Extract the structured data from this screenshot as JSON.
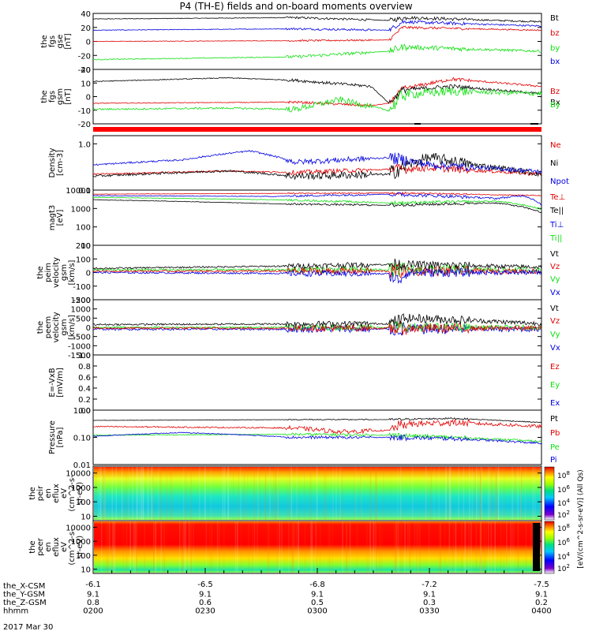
{
  "title": "P4 (TH-E) fields and on-board moments overview",
  "colors": {
    "black": "#000000",
    "red": "#e00000",
    "green": "#10e010",
    "blue": "#0000e0",
    "status_red": "#ff0000"
  },
  "x_axis": {
    "tick_labels": [
      "-6.1",
      "-6.5",
      "-6.8",
      "-7.2",
      "-7.5"
    ],
    "rows": [
      {
        "label": "the_X-CSM",
        "values": [
          "-6.1",
          "-6.5",
          "-6.8",
          "-7.2",
          "-7.5"
        ]
      },
      {
        "label": "the_Y-GSM",
        "values": [
          "9.1",
          "9.1",
          "9.1",
          "9.1",
          "9.1"
        ]
      },
      {
        "label": "the_Z-GSM",
        "values": [
          "0.8",
          "0.6",
          "0.5",
          "0.3",
          "0.2"
        ]
      },
      {
        "label": "hhmm",
        "values": [
          "0200",
          "0230",
          "0300",
          "0330",
          "0400"
        ]
      }
    ],
    "date": "2017 Mar 30"
  },
  "colorbar": {
    "label": "[eV/(cm^2-s-sr-eV)] (All Qs)",
    "tick_labels": [
      "10^8",
      "10^6",
      "10^4",
      "10^2",
      "10^8",
      "10^6",
      "10^4",
      "10^2"
    ]
  },
  "chart_data": [
    {
      "id": "fgs_gse",
      "type": "line",
      "ylabel": [
        "the",
        "fgs",
        "gse",
        "[nT]"
      ],
      "ylim": [
        -40,
        40
      ],
      "ticks": [
        "40",
        "20",
        "0",
        "-20",
        "-40"
      ],
      "legend": [
        {
          "name": "Bt",
          "color": "black"
        },
        {
          "name": "bz",
          "color": "red"
        },
        {
          "name": "by",
          "color": "green"
        },
        {
          "name": "bx",
          "color": "blue"
        }
      ]
    },
    {
      "id": "fgs_gsm",
      "type": "line",
      "ylabel": [
        "the",
        "fgs",
        "gsm",
        "[nT]"
      ],
      "ylim": [
        -25,
        20
      ],
      "ticks": [
        "20",
        "10",
        "0",
        "-10",
        "-20"
      ],
      "legend": [
        {
          "name": "Bz",
          "color": "red"
        },
        {
          "name": "Bx",
          "color": "black"
        },
        {
          "name": "By",
          "color": "green"
        }
      ]
    },
    {
      "id": "density",
      "type": "line",
      "ylabel": [
        "Density",
        "[cm-3]"
      ],
      "ylim": [
        0.1,
        1.5
      ],
      "log": true,
      "ticks": [
        "1.0",
        "0.1"
      ],
      "legend": [
        {
          "name": "Ne",
          "color": "red"
        },
        {
          "name": "Ni",
          "color": "black"
        },
        {
          "name": "Npot",
          "color": "blue"
        }
      ]
    },
    {
      "id": "temperature",
      "type": "line",
      "ylabel": [
        "magt3",
        "[eV]"
      ],
      "ylim": [
        10,
        10000
      ],
      "log": true,
      "ticks": [
        "10000",
        "1000",
        "100",
        "10"
      ],
      "legend": [
        {
          "name": "Te⊥",
          "color": "red"
        },
        {
          "name": "Te||",
          "color": "black"
        },
        {
          "name": "Ti⊥",
          "color": "blue"
        },
        {
          "name": "Ti||",
          "color": "green"
        }
      ]
    },
    {
      "id": "peim_velocity",
      "type": "line",
      "ylabel": [
        "the",
        "peim",
        "velocity",
        "gsm",
        "[km/s]"
      ],
      "ylim": [
        -200,
        200
      ],
      "ticks": [
        "200",
        "100",
        "0",
        "-100",
        "-200"
      ],
      "legend": [
        {
          "name": "Vt",
          "color": "black"
        },
        {
          "name": "Vz",
          "color": "red"
        },
        {
          "name": "Vy",
          "color": "green"
        },
        {
          "name": "Vx",
          "color": "blue"
        }
      ]
    },
    {
      "id": "peem_velocity",
      "type": "line",
      "ylabel": [
        "the",
        "peem",
        "velocity",
        "gsm",
        "[km/s]"
      ],
      "ylim": [
        -1500,
        1500
      ],
      "ticks": [
        "1500",
        "1000",
        "500",
        "0",
        "-500",
        "-1000",
        "-1500"
      ],
      "legend": [
        {
          "name": "Vt",
          "color": "black"
        },
        {
          "name": "Vz",
          "color": "red"
        },
        {
          "name": "Vy",
          "color": "green"
        },
        {
          "name": "Vx",
          "color": "blue"
        }
      ]
    },
    {
      "id": "efield",
      "type": "line",
      "ylabel": [
        "E=-VxB",
        "[mV/m]"
      ],
      "ylim": [
        0,
        1
      ],
      "ticks": [
        "1.0",
        "0.8",
        "0.6",
        "0.4",
        "0.2",
        "0.0"
      ],
      "legend": [
        {
          "name": "Ez",
          "color": "red"
        },
        {
          "name": "Ey",
          "color": "green"
        },
        {
          "name": "Ex",
          "color": "blue"
        }
      ]
    },
    {
      "id": "pressure",
      "type": "line",
      "ylabel": [
        "Pressure",
        "[nPa]"
      ],
      "ylim": [
        0.01,
        1
      ],
      "log": true,
      "ticks": [
        "1.00",
        "0.10",
        "0.01"
      ],
      "legend": [
        {
          "name": "Pt",
          "color": "black"
        },
        {
          "name": "Pb",
          "color": "red"
        },
        {
          "name": "Pe",
          "color": "green"
        },
        {
          "name": "Pi",
          "color": "blue"
        }
      ]
    },
    {
      "id": "peir_spec",
      "type": "heatmap",
      "ylabel": [
        "the",
        "peir",
        "en",
        "eflux",
        "eV",
        "(cm^2-s-",
        "sr-eV)"
      ],
      "ylim": [
        5,
        30000
      ],
      "log": true,
      "ticks": [
        "10000",
        "1000",
        "100",
        "10"
      ]
    },
    {
      "id": "peer_spec",
      "type": "heatmap",
      "ylabel": [
        "the",
        "peer",
        "en",
        "eflux",
        "eV",
        "(cm^2-s-",
        "sr-eV)"
      ],
      "ylim": [
        5,
        30000
      ],
      "log": true,
      "ticks": [
        "10000",
        "1000",
        "100",
        "10"
      ]
    }
  ]
}
